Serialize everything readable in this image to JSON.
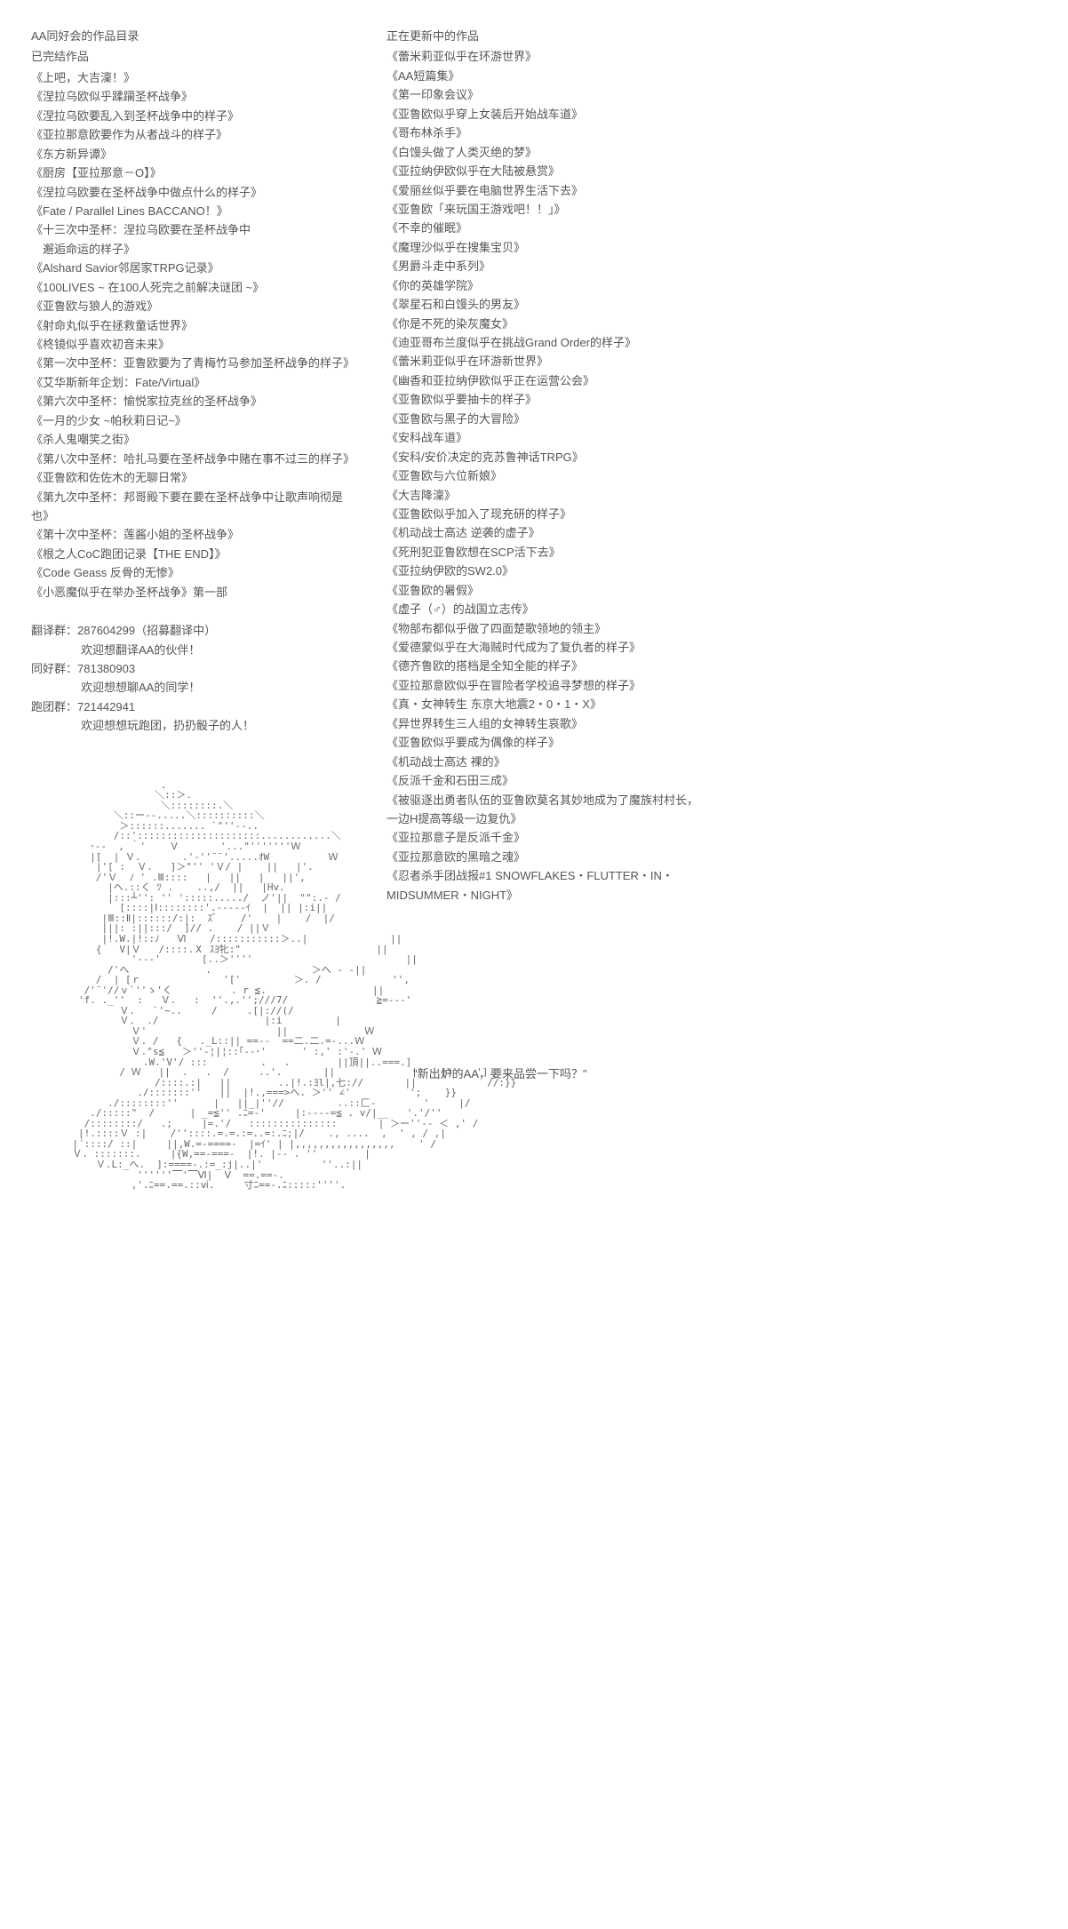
{
  "left": {
    "title1": "AA同好会的作品目录",
    "title2": "已完结作品",
    "completed": [
      "《上吧，大吉澟！》",
      "《涅拉乌欧似乎蹂躏圣杯战争》",
      "《涅拉乌欧要乱入到圣杯战争中的样子》",
      "《亚拉那意欧要作为从者战斗的样子》",
      "《东方新异谭》",
      "《厨房【亚拉那意－O】》",
      "《涅拉乌欧要在圣杯战争中做点什么的样子》",
      "《Fate / Parallel Lines BACCANO！》",
      "《十三次中圣杯：涅拉乌欧要在圣杯战争中\n　邂逅命运的样子》",
      "《Alshard Savior邻居家TRPG记录》",
      "《100LIVES ~ 在100人死完之前解决谜团 ~》",
      "《亚鲁欧与狼人的游戏》",
      "《射命丸似乎在拯救童话世界》",
      "《柊镜似乎喜欢初音未来》",
      "《第一次中圣杯：亚鲁欧要为了青梅竹马参加圣杯战争的样子》",
      "《艾华斯新年企划：Fate/Virtual》",
      "《第六次中圣杯：愉悦家拉克丝的圣杯战争》",
      "《一月的少女 ~帕秋莉日记~》",
      "《杀人鬼嘲笑之街》",
      "《第八次中圣杯：哈扎马要在圣杯战争中赌在事不过三的样子》",
      "《亚鲁欧和佐佐木的无聊日常》",
      "《第九次中圣杯：邦哥殿下要在要在圣杯战争中让歌声响彻是也》",
      "《第十次中圣杯：莲酱小姐的圣杯战争》",
      "《根之人CoC跑团记录【THE END】》",
      "《Code Geass 反骨的无惨》",
      "《小恶魔似乎在举办圣杯战争》第一部"
    ],
    "groups": [
      {
        "label": "翻译群：287604299（招募翻译中）",
        "sub": "欢迎想翻译AA的伙伴！"
      },
      {
        "label": "同好群：781380903",
        "sub": "欢迎想想聊AA的同学！"
      },
      {
        "label": "跑团群：721442941",
        "sub": "欢迎想想玩跑团，扔扔骰子的人！"
      }
    ],
    "ascii": "                      .\n                     ＼::＞.\n                      ＼::::::::.＼\n              ＼::ー--.....＼::::::::::＼\n               ＞::::::....... `\"''‐-..\n              /::':::::::::::::::::::::............＼\n          ･‐-  , ｀'    Ｖ       '...\"'''''''Ｗ\n          |[  | Ｖ.       .'-''¨¨'.....ｵW          Ｗ\n           |'[ :  Ｖ.   ]＞\"'' 'Ｖ/ |    ||   |'.\n           /'Ｖ  ﾉ ' .Ⅲ::::   |   ||   |   ||',\n             |へ.::く ﾂ .    ..,/  ||   |Hv.\n             |:::┴'': '' ':::::...../  ノ'||  \"\":.‐ /\n               [::::|Ⅰ::::::::'.-----ｲ  |  || |:i||\n            |Ⅲ::Ⅱ|::::::/:|:  ｽﾞ    /'    |    /  |/\n            |||: :||:::/  ]// .    / ||Ｖ\n            |!.W.|!::ﾉ   Ⅵ    /:::::::::::＞..|              ||\n           {   V|Ｖ   /::::.Ⅹ ｽﾖ牝:\"                       ||\n                 '---'       [..＞''''                          ||\n             /'へ             .                 ＞へ - -||\n           /  | [ｒ              '['         ＞. /            '',\n         /'¨'//ｖ`''ゝ'く          . r ≦.                  ||\n        'f. ._''  :   Ｖ.   :  ''.,.'';///7/               ≧=---'\n               Ｖ.   `'~..     /     .[|://(/\n               Ｖ.  ./                  |:i         |\n                 Ｖ'                      ||             Ｗ\n                 Ｖ. /   {   ._L::|| ==--  ==二.二.=-...Ｗ\n                 Ｖ.°s≦   ＞''‐¦|¦::｢--･'      ' :,' :'-.' Ｗ\n                   .W.'V'/ :::         .   .        ||頂||..===.]\n               / Ｗ   ||  .   .  /     ..'.       ||             |'   || .  '].\n                     /::::.:|   ||        ..|!.:ﾖl|,七://       ||            //:}}\n                  ./:::::::''   ||  |!.,===>へ. ＞'' ∠'          ';    }}\n             ./::::::::''      |   ||_|''//         ..::匚-        '     |/\n          ./:::::\"  /      | _=≦'' .ﾆ=-'     |:----=≦ . v/|__   '.'/''\n         /::::::::/   .;     |=.'/   :::::::::::::::       | ＞ー''-- ＜ ,' /\n        |!.::::Ｖ :|    /''::::.=.=.:=..=:.ﾆ;|/    ., ....  ,  ' , / ,|\n       |´::::/ ::|     ||,W.=-====-  |=ｲ' | |,,,,,,,,,,,,,,,,,    ' /\n       Ｖ. :::::::.     |{W,==-===-  |!. |-- . ''        |\n           Ｖ.L:_へ.  ]:====-.:=_:j|..|'          ''..:||\n                  ''''''⎺'⎺Ⅵ|  Ⅴ  ==.==-.\n                 ,'.ﾆ==.==.::ⅵ.     寸ﾆ==-.ﾆ:::::''''."
  },
  "right": {
    "title": "正在更新中的作品",
    "updating": [
      "《蕾米莉亚似乎在环游世界》",
      "《AA短篇集》",
      "《第一印象会议》",
      "《亚鲁欧似乎穿上女装后开始战车道》",
      "《哥布林杀手》",
      "《白馒头做了人类灭绝的梦》",
      "《亚拉纳伊欧似乎在大陆被悬赏》",
      "《爱丽丝似乎要在电脑世界生活下去》",
      "《亚鲁欧「来玩国王游戏吧！！」》",
      "《不幸的催眠》",
      "《魔理沙似乎在搜集宝贝》",
      "《男爵斗走中系列》",
      "《你的英雄学院》",
      "《翠星石和白馒头的男友》",
      "《你是不死的染灰魔女》",
      "《迪亚哥布兰度似乎在挑战Grand Order的样子》",
      "《蕾米莉亚似乎在环游新世界》",
      "《幽香和亚拉纳伊欧似乎正在运营公会》",
      "《亚鲁欧似乎要抽卡的样子》",
      "《亚鲁欧与黑子的大冒险》",
      "《安科战车道》",
      "《安科/安价决定的克苏鲁神话TRPG》",
      "《亚鲁欧与六位新娘》",
      "《大吉降澟》",
      "《亚鲁欧似乎加入了现充研的样子》",
      "《机动战士高达 逆袭的虚子》",
      "《死刑犯亚鲁欧想在SCP活下去》",
      "《亚拉纳伊欧的SW2.0》",
      "《亚鲁欧的暑假》",
      "《虚子（♂）的战国立志传》",
      "《物部布都似乎做了四面楚歌领地的领主》",
      "《爱德蒙似乎在大海贼时代成为了复仇者的样子》",
      "《德齐鲁欧的搭档是全知全能的样子》",
      "《亚拉那意欧似乎在冒险者学校追寻梦想的样子》",
      "《真・女神转生 东京大地震2・0・1・X》",
      "《异世界转生三人组的女神转生哀歌》",
      "《亚鲁欧似乎要成为偶像的样子》",
      "《机动战士高达 裸的》",
      "《反派千金和石田三成》",
      "《被驱逐出勇者队伍的亚鲁欧莫名其妙地成为了魔族村村长，\n一边H提高等级一边复仇》",
      "《亚拉那意子是反派千金》",
      "《亚拉那意欧的黑暗之魂》",
      "《忍者杀手团战报#1 SNOWFLAKES・FLUTTER・IN・\nMIDSUMMER・NIGHT》"
    ],
    "quote": "\"新出炉的AA，要来品尝一下吗？\""
  }
}
